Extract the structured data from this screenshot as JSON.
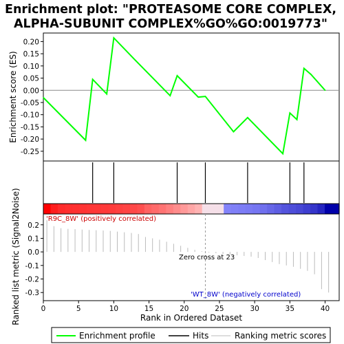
{
  "chart_data": [
    {
      "type": "line",
      "title_lines": [
        "Enrichment plot: \"PROTEASOME CORE COMPLEX,",
        "ALPHA-SUBUNIT COMPLEX%GO%GO:0019773\""
      ],
      "ylabel": "Enrichment score (ES)",
      "ylim": [
        -0.29,
        0.235
      ],
      "yticks": [
        0.2,
        0.15,
        0.1,
        0.05,
        0.0,
        -0.05,
        -0.1,
        -0.15,
        -0.2,
        -0.25
      ],
      "ytick_labels": [
        "0.20",
        "0.15",
        "0.10",
        "0.05",
        "0.00",
        "-0.05",
        "-0.10",
        "-0.15",
        "-0.20",
        "-0.25"
      ],
      "series": [
        {
          "legend_label": "Enrichment profile",
          "color": "#00ff00",
          "x": [
            0,
            6,
            7,
            9,
            10,
            13,
            18,
            19,
            22,
            23,
            27,
            29,
            34,
            35,
            36,
            37,
            38,
            40
          ],
          "y": [
            -0.03,
            -0.205,
            0.045,
            -0.015,
            0.215,
            0.125,
            -0.022,
            0.06,
            -0.028,
            -0.025,
            -0.17,
            -0.112,
            -0.26,
            -0.093,
            -0.12,
            0.09,
            0.065,
            0.0
          ]
        }
      ]
    },
    {
      "type": "hits",
      "legend_label": "Hits",
      "hits": [
        7,
        10,
        19,
        23,
        29,
        35,
        37
      ]
    },
    {
      "type": "bar",
      "ylabel": "Ranked list metric (Signal2Noise)",
      "xlabel": "Rank in Ordered Dataset",
      "legend_label": "Ranking metric scores",
      "xlim": [
        0,
        42
      ],
      "ylim": [
        -0.36,
        0.28
      ],
      "xticks": [
        0,
        5,
        10,
        15,
        20,
        25,
        30,
        35,
        40
      ],
      "xtick_labels": [
        "0",
        "5",
        "10",
        "15",
        "20",
        "25",
        "30",
        "35",
        "40"
      ],
      "yticks": [
        0.2,
        0.1,
        0.0,
        -0.1,
        -0.2,
        -0.3
      ],
      "ytick_labels": [
        "0.2",
        "0.1",
        "0.0",
        "-0.1",
        "-0.2",
        "-0.3"
      ],
      "values": [
        0.235,
        0.19,
        0.175,
        0.17,
        0.168,
        0.165,
        0.162,
        0.16,
        0.158,
        0.155,
        0.15,
        0.145,
        0.14,
        0.132,
        0.11,
        0.1,
        0.09,
        0.075,
        0.06,
        0.045,
        0.03,
        0.015,
        0.005,
        -0.005,
        -0.01,
        -0.015,
        -0.02,
        -0.025,
        -0.03,
        -0.035,
        -0.045,
        -0.06,
        -0.075,
        -0.09,
        -0.1,
        -0.11,
        -0.125,
        -0.14,
        -0.165,
        -0.275,
        -0.3
      ]
    }
  ],
  "annotations": {
    "positive": "'R9C_8W' (positively correlated)",
    "negative": "'WT_8W' (negatively correlated)",
    "zero_cross": "Zero cross at 23"
  },
  "colors": {
    "enrichment": "#00ff00",
    "positive_text": "#cc0000",
    "negative_text": "#0000cc",
    "bar_pos": "#ff0000",
    "bar_neg": "#0000ff"
  },
  "legend": {
    "items": [
      "Enrichment profile",
      "Hits",
      "Ranking metric scores"
    ]
  }
}
